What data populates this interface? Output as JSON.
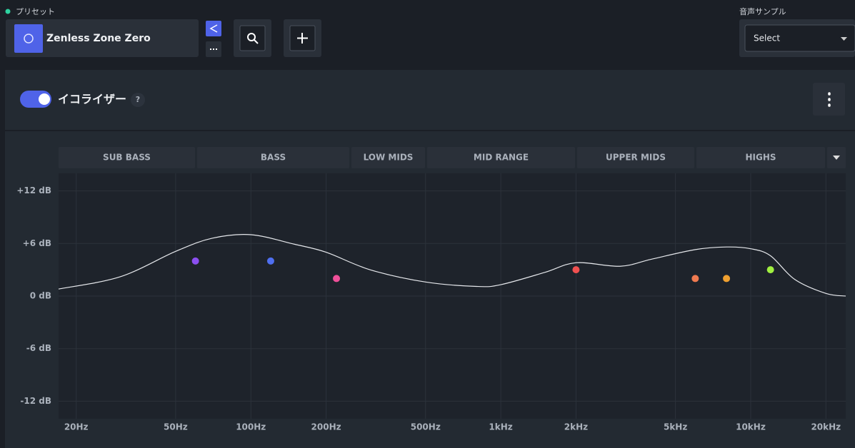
{
  "header": {
    "preset_label": "プリセット",
    "preset_name": "Zenless Zone Zero",
    "sample_label": "音声サンプル",
    "sample_select": "Select"
  },
  "equalizer": {
    "title": "イコライザー",
    "help": "?",
    "bands": [
      "SUB BASS",
      "BASS",
      "LOW MIDS",
      "MID RANGE",
      "UPPER MIDS",
      "HIGHS"
    ]
  },
  "chart_data": {
    "type": "eq",
    "log_x": true,
    "xlim": [
      17,
      24000
    ],
    "ylim": [
      -14,
      14
    ],
    "xticks": [
      {
        "value": 20,
        "label": "20Hz"
      },
      {
        "value": 50,
        "label": "50Hz"
      },
      {
        "value": 100,
        "label": "100Hz"
      },
      {
        "value": 200,
        "label": "200Hz"
      },
      {
        "value": 500,
        "label": "500Hz"
      },
      {
        "value": 1000,
        "label": "1kHz"
      },
      {
        "value": 2000,
        "label": "2kHz"
      },
      {
        "value": 5000,
        "label": "5kHz"
      },
      {
        "value": 10000,
        "label": "10kHz"
      },
      {
        "value": 20000,
        "label": "20kHz"
      }
    ],
    "yticks": [
      {
        "value": 12,
        "label": "+12 dB"
      },
      {
        "value": 6,
        "label": "+6 dB"
      },
      {
        "value": 0,
        "label": "0 dB"
      },
      {
        "value": -6,
        "label": "-6 dB"
      },
      {
        "value": -12,
        "label": "-12 dB"
      }
    ],
    "curve": {
      "color": "#e6e8ec",
      "x": [
        17,
        30,
        50,
        70,
        100,
        150,
        200,
        300,
        500,
        800,
        1000,
        1500,
        2000,
        3000,
        4000,
        6000,
        8000,
        10000,
        12000,
        15000,
        20000,
        24000
      ],
      "values": [
        0.8,
        2.2,
        5.1,
        6.6,
        7.0,
        5.9,
        5.0,
        3.0,
        1.6,
        1.1,
        1.3,
        2.7,
        3.8,
        3.4,
        4.2,
        5.3,
        5.6,
        5.4,
        4.6,
        1.9,
        0.3,
        0
      ]
    },
    "points": {
      "x": [
        60,
        120,
        220,
        2000,
        6000,
        8000,
        12000
      ],
      "values": [
        4,
        4,
        2,
        3,
        2,
        2,
        3
      ],
      "colors": [
        "#8b4ff0",
        "#4f6ff0",
        "#f0509a",
        "#f05050",
        "#f07a50",
        "#f0a030",
        "#a0f040"
      ]
    }
  }
}
